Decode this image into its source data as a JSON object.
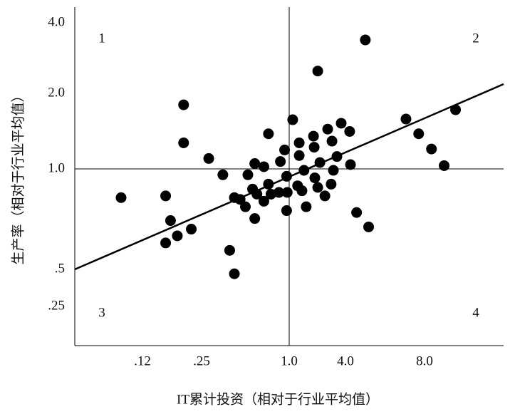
{
  "chart_data": {
    "type": "scatter",
    "x_label": "IT累计投资（相对于行业平均值）",
    "y_label": "生产率（相对于行业平均值）",
    "log_x": true,
    "log_y": true,
    "xlim": [
      0.05,
      16
    ],
    "ylim": [
      0.12,
      4.7
    ],
    "xticks": [
      {
        "value": 0.12,
        "label": ".12"
      },
      {
        "value": 0.25,
        "label": ".25"
      },
      {
        "value": 1,
        "label": "1.0"
      },
      {
        "value": 4,
        "label": "4.0"
      },
      {
        "value": 8,
        "label": "8.0"
      }
    ],
    "yticks": [
      {
        "value": 0.25,
        "label": ".25"
      },
      {
        "value": 0.5,
        "label": ".5"
      },
      {
        "value": 1,
        "label": "1.0"
      },
      {
        "value": 2,
        "label": "2.0"
      },
      {
        "value": 4,
        "label": "4.0"
      }
    ],
    "reference": {
      "x": 1,
      "y": 1
    },
    "quadrants": [
      "1",
      "2",
      "3",
      "4"
    ],
    "color": "#000000",
    "series": [
      {
        "x": [
          4.76,
          2.02,
          0.2,
          0.2,
          0.091,
          0.16,
          0.17,
          0.16,
          0.185,
          0.22,
          0.28,
          0.35,
          0.39,
          0.42,
          0.42,
          0.46,
          0.5,
          0.52,
          0.56,
          0.58,
          0.58,
          0.6,
          0.67,
          0.67,
          0.72,
          0.72,
          0.75,
          0.85,
          0.87,
          0.93,
          0.96,
          0.96,
          0.97,
          1.09,
          1.23,
          1.28,
          1.28,
          1.37,
          1.44,
          1.52,
          1.82,
          1.85,
          1.88,
          2.02,
          2.13,
          2.41,
          2.58,
          2.87,
          2.81,
          2.97,
          3.24,
          3.6,
          4.15,
          4.18,
          4.41,
          4.9,
          6.8,
          7.6,
          8.5,
          9.5,
          10.5
        ],
        "y": [
          3.38,
          2.49,
          1.8,
          1.27,
          0.82,
          0.83,
          0.7,
          0.6,
          0.63,
          0.66,
          1.1,
          0.96,
          0.57,
          0.46,
          0.82,
          0.81,
          0.77,
          0.96,
          0.87,
          0.71,
          1.05,
          0.84,
          0.8,
          1.02,
          1.38,
          0.9,
          0.84,
          0.85,
          1.07,
          1.19,
          0.95,
          0.75,
          0.85,
          1.57,
          0.89,
          1.27,
          1.13,
          0.86,
          0.99,
          0.77,
          1.35,
          1.22,
          0.94,
          0.88,
          1.06,
          0.83,
          1.44,
          1.29,
          0.9,
          0.99,
          1.12,
          1.52,
          1.41,
          1.04,
          0.74,
          0.67,
          1.58,
          1.38,
          1.2,
          1.03,
          1.72
        ]
      }
    ],
    "trend_line": {
      "x": [
        0.05,
        16
      ],
      "y": [
        0.5,
        2.19
      ]
    }
  }
}
